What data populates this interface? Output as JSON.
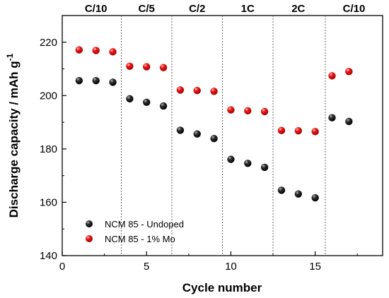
{
  "chart_data": {
    "type": "scatter",
    "xlabel": "Cycle number",
    "ylabel_main": "Discharge capacity / mAh g",
    "ylabel_sup": "-1",
    "xlim": [
      0,
      19
    ],
    "ylim": [
      140,
      230
    ],
    "x_ticks": [
      0,
      5,
      10,
      15
    ],
    "y_ticks": [
      140,
      160,
      180,
      200,
      220
    ],
    "grid": false,
    "legend_position": "bottom-left",
    "region_dividers": [
      3.5,
      6.5,
      9.5,
      12.5,
      15.6
    ],
    "regions": [
      {
        "label": "C/10",
        "center": 2
      },
      {
        "label": "C/5",
        "center": 5
      },
      {
        "label": "C/2",
        "center": 8
      },
      {
        "label": "1C",
        "center": 11
      },
      {
        "label": "2C",
        "center": 14
      },
      {
        "label": "C/10",
        "center": 17.3
      }
    ],
    "series": [
      {
        "name": "NCM 85 - Undoped",
        "color": "#000000",
        "x": [
          1,
          2,
          3,
          4,
          5,
          6,
          7,
          8,
          9,
          10,
          11,
          12,
          13,
          14,
          15,
          16,
          17
        ],
        "y": [
          205.6,
          205.6,
          205.0,
          198.8,
          197.5,
          196.1,
          187.0,
          185.6,
          183.9,
          176.1,
          174.6,
          173.1,
          164.5,
          163.1,
          161.7,
          191.7,
          190.3
        ]
      },
      {
        "name": "NCM 85 - 1% Mo",
        "color": "#e01010",
        "x": [
          1,
          2,
          3,
          4,
          5,
          6,
          7,
          8,
          9,
          10,
          11,
          12,
          13,
          14,
          15,
          16,
          17
        ],
        "y": [
          217.1,
          216.9,
          216.4,
          211.0,
          210.8,
          210.5,
          202.1,
          201.9,
          201.6,
          194.6,
          194.3,
          194.0,
          186.9,
          186.8,
          186.5,
          207.4,
          209.0
        ]
      }
    ]
  }
}
